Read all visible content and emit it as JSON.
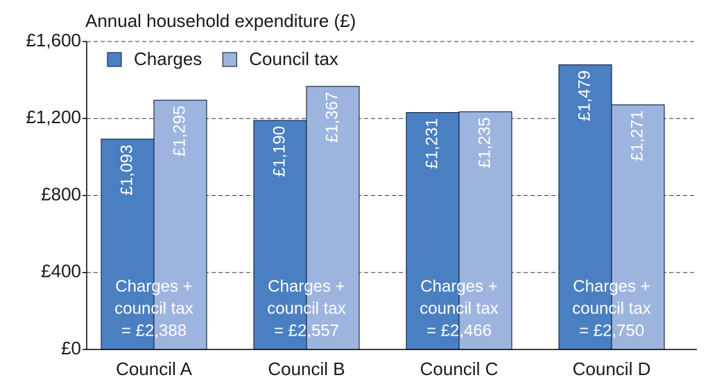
{
  "chart_data": {
    "type": "bar",
    "y_label": "Annual household expenditure (£)",
    "categories": [
      "Council A",
      "Council B",
      "Council C",
      "Council D"
    ],
    "series": [
      {
        "name": "Charges",
        "color": "#4a7fc1",
        "values": [
          1093,
          1190,
          1231,
          1479
        ],
        "value_labels": [
          "£1,093",
          "£1,190",
          "£1,231",
          "£1,479"
        ]
      },
      {
        "name": "Council tax",
        "color": "#9db5de",
        "values": [
          1295,
          1367,
          1235,
          1271
        ],
        "value_labels": [
          "£1,295",
          "£1,367",
          "£1,235",
          "£1,271"
        ]
      }
    ],
    "annotations": [
      [
        "Charges +",
        "council tax",
        "= £2,388"
      ],
      [
        "Charges +",
        "council tax",
        "= £2,557"
      ],
      [
        "Charges +",
        "council tax",
        "= £2,466"
      ],
      [
        "Charges +",
        "council tax",
        "= £2,750"
      ]
    ],
    "ylim": [
      0,
      1600
    ],
    "yticks": [
      {
        "value": 0,
        "label": "£0"
      },
      {
        "value": 400,
        "label": "£400"
      },
      {
        "value": 800,
        "label": "£800"
      },
      {
        "value": 1200,
        "label": "£1,200"
      },
      {
        "value": 1600,
        "label": "£1,600"
      }
    ],
    "grid": true,
    "legend": "top-left"
  }
}
